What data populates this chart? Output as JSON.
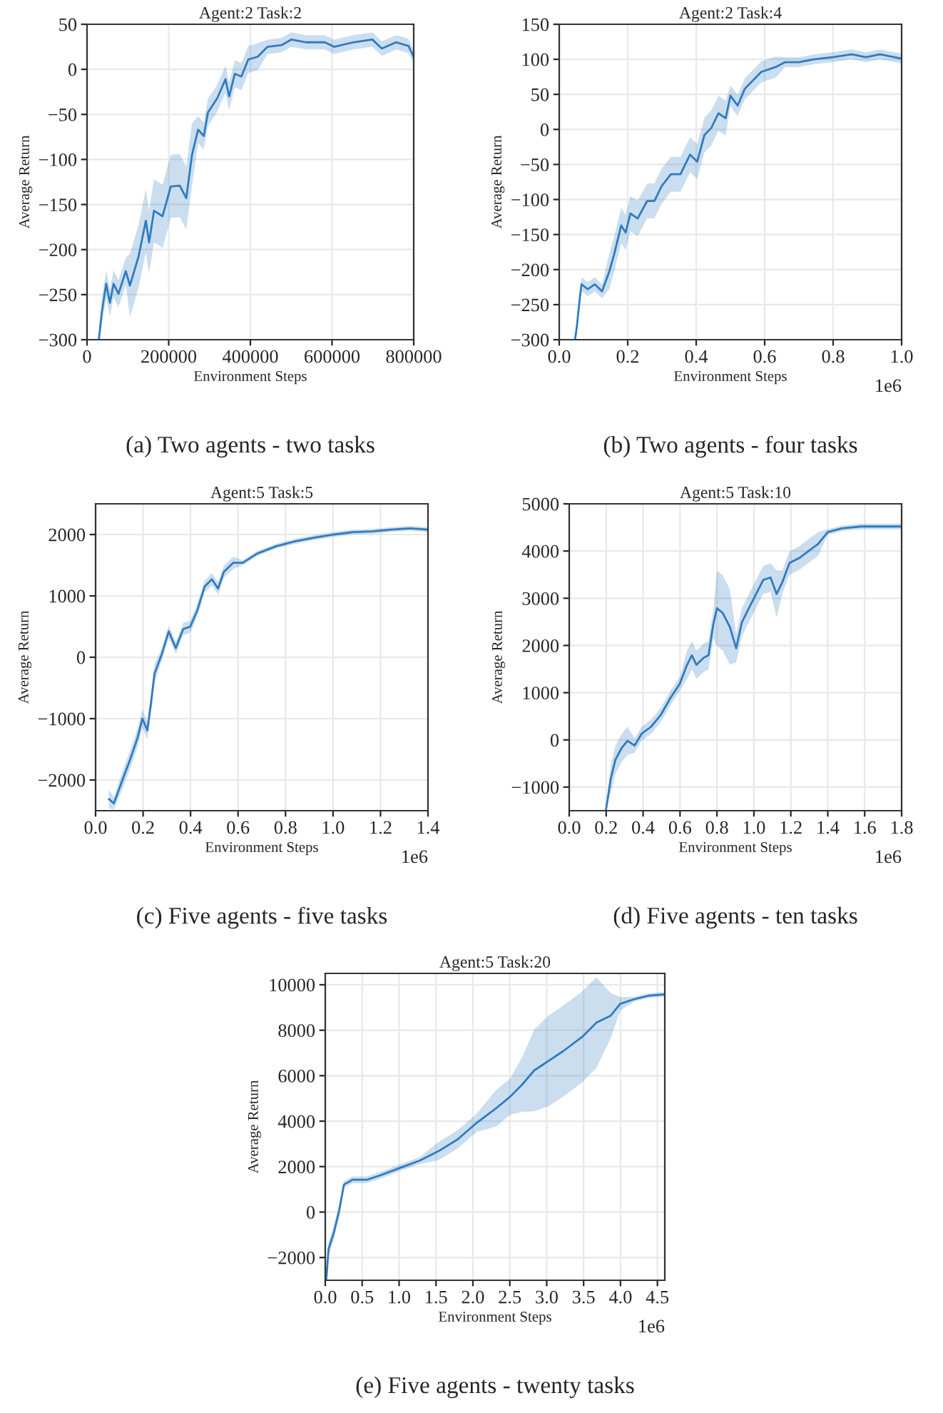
{
  "chart_data": [
    {
      "type": "line",
      "title": "Agent:2 Task:2",
      "xlabel": "Environment Steps",
      "ylabel": "Average Return",
      "grid": true,
      "xlim": [
        0,
        800000
      ],
      "ylim": [
        -300,
        50
      ],
      "xticks": [
        0,
        200000,
        400000,
        600000,
        800000
      ],
      "yticks": [
        -300,
        -250,
        -200,
        -150,
        -100,
        -50,
        0,
        50
      ],
      "annotations": [
        "(a) Two agents - two tasks"
      ],
      "series": [
        {
          "color": "#2f7bbf",
          "x": [
            29000,
            36000,
            47000,
            56000,
            65000,
            77000,
            95000,
            105000,
            126000,
            144000,
            152000,
            164000,
            185000,
            205000,
            227000,
            243000,
            257000,
            272000,
            286000,
            296000,
            319000,
            339000,
            348000,
            362000,
            378000,
            395000,
            418000,
            442000,
            477000,
            500000,
            536000,
            582000,
            605000,
            652000,
            699000,
            722000,
            757000,
            787000,
            800000
          ],
          "values": [
            -300,
            -270,
            -238,
            -259,
            -238,
            -249,
            -224,
            -240,
            -208,
            -168,
            -192,
            -157,
            -163,
            -130,
            -129,
            -143,
            -95,
            -67,
            -74,
            -48,
            -32,
            -11,
            -30,
            -5,
            -8,
            11,
            14,
            25,
            27,
            33,
            30,
            30,
            25,
            30,
            33,
            23,
            30,
            26,
            14
          ],
          "lower": [
            -300,
            -285,
            -253,
            -274,
            -253,
            -264,
            -239,
            -275,
            -243,
            -203,
            -227,
            -192,
            -198,
            -165,
            -164,
            -178,
            -130,
            -82,
            -89,
            -63,
            -47,
            -26,
            -45,
            -20,
            -23,
            -4,
            -1,
            17,
            19,
            25,
            22,
            22,
            17,
            22,
            25,
            15,
            22,
            18,
            6
          ],
          "upper": [
            -300,
            -255,
            -223,
            -244,
            -223,
            -234,
            -209,
            -205,
            -173,
            -133,
            -157,
            -122,
            -128,
            -95,
            -94,
            -108,
            -60,
            -52,
            -59,
            -33,
            -17,
            4,
            -15,
            10,
            7,
            26,
            29,
            33,
            35,
            41,
            38,
            38,
            33,
            38,
            41,
            31,
            38,
            34,
            22
          ]
        }
      ]
    },
    {
      "type": "line",
      "title": "Agent:2 Task:4",
      "xlabel": "Environment Steps",
      "ylabel": "Average Return",
      "grid": true,
      "xlim": [
        0.0,
        1.0
      ],
      "ylim": [
        -300,
        150
      ],
      "xticks": [
        {
          "value": 0,
          "label": "0.0"
        },
        0.2,
        0.4,
        0.6,
        0.8,
        {
          "value": 1,
          "label": "1.0"
        }
      ],
      "yticks": [
        -300,
        -250,
        -200,
        -150,
        -100,
        -50,
        0,
        50,
        100,
        150
      ],
      "annotations": [
        "1e6",
        "(b) Two agents - four tasks"
      ],
      "series": [
        {
          "color": "#2f7bbf",
          "x": [
            0.046,
            0.051,
            0.06,
            0.065,
            0.083,
            0.104,
            0.125,
            0.146,
            0.16,
            0.181,
            0.194,
            0.208,
            0.229,
            0.257,
            0.278,
            0.299,
            0.326,
            0.354,
            0.382,
            0.403,
            0.424,
            0.444,
            0.465,
            0.486,
            0.5,
            0.521,
            0.542,
            0.562,
            0.59,
            0.632,
            0.66,
            0.701,
            0.743,
            0.799,
            0.854,
            0.896,
            0.937,
            1.0
          ],
          "values": [
            -300,
            -283,
            -241,
            -221,
            -228,
            -221,
            -231,
            -203,
            -179,
            -137,
            -147,
            -120,
            -127,
            -102,
            -102,
            -81,
            -64,
            -64,
            -36,
            -46,
            -8,
            2,
            23,
            16,
            48,
            34,
            58,
            68,
            82,
            89,
            96,
            96,
            100,
            103,
            107,
            103,
            107,
            101
          ],
          "lower": [
            -300,
            -293,
            -251,
            -231,
            -238,
            -231,
            -241,
            -228,
            -204,
            -162,
            -172,
            -145,
            -152,
            -127,
            -127,
            -106,
            -89,
            -89,
            -61,
            -71,
            -33,
            -23,
            -2,
            -9,
            33,
            19,
            43,
            53,
            67,
            74,
            89,
            89,
            93,
            96,
            100,
            96,
            100,
            94
          ],
          "upper": [
            -300,
            -273,
            -231,
            -211,
            -218,
            -211,
            -221,
            -178,
            -154,
            -112,
            -122,
            -95,
            -102,
            -77,
            -77,
            -56,
            -39,
            -39,
            -11,
            -21,
            17,
            27,
            48,
            41,
            63,
            49,
            73,
            83,
            97,
            104,
            103,
            103,
            107,
            110,
            114,
            110,
            114,
            108
          ]
        }
      ]
    },
    {
      "type": "line",
      "title": "Agent:5 Task:5",
      "xlabel": "Environment Steps",
      "ylabel": "Average Return",
      "grid": true,
      "xlim": [
        0.0,
        1.4
      ],
      "ylim": [
        -2500,
        2500
      ],
      "xticks": [
        {
          "value": 0,
          "label": "0.0"
        },
        0.2,
        0.4,
        0.6,
        0.8,
        {
          "value": 1,
          "label": "1.0"
        },
        1.2,
        1.4
      ],
      "yticks": [
        -2000,
        -1000,
        0,
        1000,
        2000
      ],
      "annotations": [
        "1e6",
        "(c) Five agents - five tasks"
      ],
      "series": [
        {
          "color": "#2f7bbf",
          "x": [
            0.056,
            0.077,
            0.117,
            0.147,
            0.177,
            0.197,
            0.218,
            0.234,
            0.248,
            0.278,
            0.308,
            0.338,
            0.369,
            0.399,
            0.429,
            0.459,
            0.49,
            0.516,
            0.54,
            0.58,
            0.62,
            0.681,
            0.761,
            0.842,
            0.922,
            1.003,
            1.084,
            1.164,
            1.245,
            1.325,
            1.4
          ],
          "values": [
            -2310,
            -2380,
            -1960,
            -1650,
            -1310,
            -1000,
            -1190,
            -730,
            -270,
            40,
            420,
            150,
            460,
            500,
            770,
            1150,
            1270,
            1120,
            1390,
            1540,
            1540,
            1690,
            1810,
            1890,
            1950,
            2000,
            2040,
            2050,
            2080,
            2100,
            2080
          ],
          "lower": [
            -2460,
            -2480,
            -2110,
            -1800,
            -1460,
            -1150,
            -1340,
            -880,
            -420,
            -60,
            320,
            50,
            360,
            400,
            670,
            1050,
            1170,
            1020,
            1290,
            1440,
            1500,
            1650,
            1770,
            1850,
            1910,
            1960,
            2000,
            2010,
            2040,
            2060,
            2040
          ],
          "upper": [
            -2160,
            -2280,
            -1810,
            -1500,
            -1160,
            -850,
            -1040,
            -580,
            -120,
            140,
            520,
            250,
            560,
            600,
            870,
            1250,
            1370,
            1220,
            1490,
            1640,
            1580,
            1730,
            1850,
            1930,
            1990,
            2040,
            2080,
            2090,
            2120,
            2140,
            2120
          ]
        }
      ]
    },
    {
      "type": "line",
      "title": "Agent:5 Task:10",
      "xlabel": "Environment Steps",
      "ylabel": "Average Return",
      "grid": true,
      "xlim": [
        0.0,
        1.8
      ],
      "ylim": [
        -1500,
        5000
      ],
      "xticks": [
        {
          "value": 0,
          "label": "0.0"
        },
        0.2,
        0.4,
        0.6,
        0.8,
        {
          "value": 1,
          "label": "1.0"
        },
        1.2,
        1.4,
        1.6,
        1.8
      ],
      "yticks": [
        -1000,
        0,
        1000,
        2000,
        3000,
        4000,
        5000
      ],
      "annotations": [
        "1e6",
        "(d) Five agents - ten tasks"
      ],
      "series": [
        {
          "color": "#2f7bbf",
          "x": [
            0.199,
            0.225,
            0.25,
            0.284,
            0.315,
            0.354,
            0.392,
            0.444,
            0.496,
            0.547,
            0.599,
            0.638,
            0.664,
            0.689,
            0.728,
            0.754,
            0.78,
            0.8,
            0.831,
            0.87,
            0.904,
            0.935,
            0.973,
            1.012,
            1.051,
            1.09,
            1.123,
            1.154,
            1.193,
            1.245,
            1.296,
            1.348,
            1.4,
            1.477,
            1.581,
            1.684,
            1.8
          ],
          "values": [
            -1480,
            -820,
            -420,
            -170,
            -20,
            -120,
            130,
            280,
            530,
            880,
            1190,
            1590,
            1790,
            1590,
            1740,
            1790,
            2440,
            2790,
            2690,
            2390,
            1940,
            2490,
            2790,
            3090,
            3390,
            3440,
            3090,
            3340,
            3750,
            3850,
            4000,
            4150,
            4400,
            4480,
            4520,
            4520,
            4520
          ],
          "lower": [
            -1480,
            -1120,
            -720,
            -470,
            -320,
            -270,
            -20,
            130,
            380,
            730,
            1040,
            1290,
            1490,
            1290,
            1440,
            1490,
            2140,
            1990,
            1890,
            1590,
            1640,
            2190,
            2490,
            2790,
            3090,
            3140,
            2590,
            3090,
            3500,
            3600,
            3750,
            3900,
            4340,
            4420,
            4460,
            4460,
            4460
          ],
          "upper": [
            -1480,
            -520,
            -120,
            130,
            280,
            30,
            280,
            430,
            680,
            1030,
            1340,
            1890,
            2090,
            1890,
            2040,
            2090,
            2740,
            3590,
            3490,
            3190,
            2240,
            2790,
            3090,
            3390,
            3690,
            3740,
            3590,
            3590,
            4000,
            4100,
            4250,
            4400,
            4460,
            4540,
            4580,
            4580,
            4580
          ]
        }
      ]
    },
    {
      "type": "line",
      "title": "Agent:5 Task:20",
      "xlabel": "Environment Steps",
      "ylabel": "Average Return",
      "grid": true,
      "xlim": [
        0.0,
        4.6
      ],
      "ylim": [
        -3000,
        10500
      ],
      "xticks": [
        {
          "value": 0,
          "label": "0.0"
        },
        0.5,
        {
          "value": 1,
          "label": "1.0"
        },
        1.5,
        {
          "value": 2,
          "label": "2.0"
        },
        2.5,
        {
          "value": 3,
          "label": "3.0"
        },
        3.5,
        {
          "value": 4,
          "label": "4.0"
        },
        4.5
      ],
      "yticks": [
        -2000,
        0,
        2000,
        4000,
        6000,
        8000,
        10000
      ],
      "annotations": [
        "1e6",
        "(e) Five agents - twenty tasks"
      ],
      "series": [
        {
          "color": "#2f7bbf",
          "x": [
            0.013,
            0.045,
            0.11,
            0.188,
            0.253,
            0.369,
            0.563,
            0.758,
            1.017,
            1.276,
            1.535,
            1.794,
            2.053,
            2.312,
            2.506,
            2.668,
            2.83,
            3.025,
            3.219,
            3.478,
            3.672,
            3.867,
            3.996,
            4.19,
            4.385,
            4.6
          ],
          "values": [
            -3000,
            -1610,
            -980,
            60,
            1210,
            1420,
            1420,
            1630,
            1950,
            2260,
            2680,
            3200,
            3930,
            4560,
            5080,
            5610,
            6230,
            6650,
            7070,
            7700,
            8330,
            8640,
            9160,
            9370,
            9520,
            9580
          ],
          "lower": [
            -3000,
            -1910,
            -1280,
            -240,
            1060,
            1270,
            1270,
            1480,
            1800,
            2110,
            2280,
            2800,
            3530,
            3760,
            4280,
            4410,
            4430,
            4650,
            5070,
            5700,
            6330,
            7640,
            8860,
            9270,
            9420,
            9480
          ],
          "upper": [
            -3000,
            -1310,
            -680,
            360,
            1360,
            1570,
            1570,
            1780,
            2100,
            2410,
            3080,
            3600,
            4330,
            5360,
            5880,
            6810,
            8030,
            8650,
            9070,
            9700,
            10330,
            9640,
            9460,
            9470,
            9620,
            9680
          ]
        }
      ]
    }
  ]
}
